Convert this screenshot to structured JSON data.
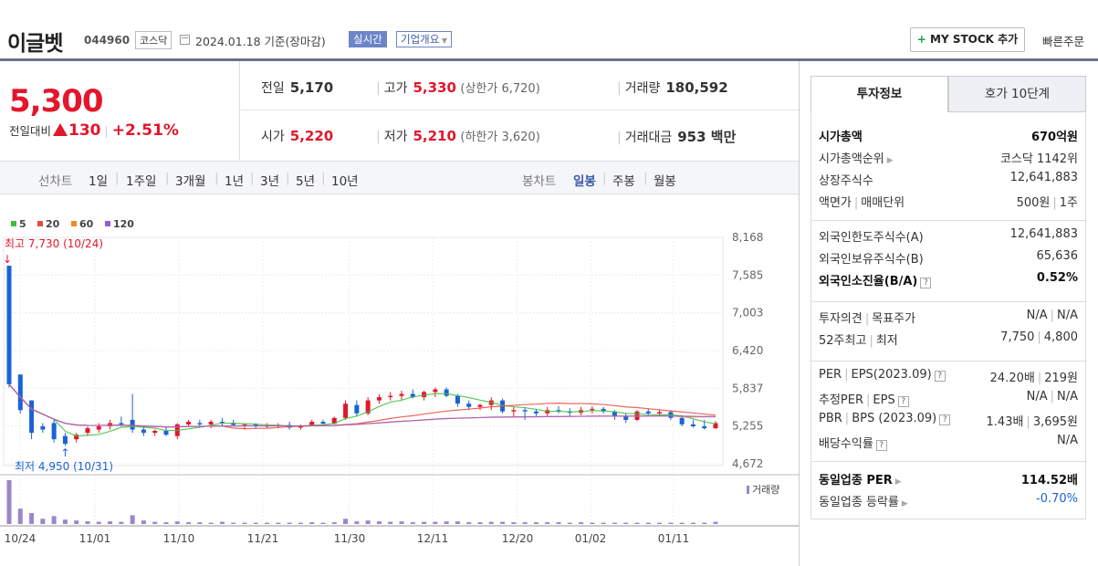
{
  "header": {
    "stock_name": "이글벳",
    "stock_code": "044960",
    "market": "코스닥",
    "date_text": "2024.01.18 기준(장마감)",
    "realtime_label": "실시간",
    "overview_label": "기업개요",
    "mystock_label": "MY STOCK 추가",
    "quick_order_label": "빠른주문"
  },
  "price": {
    "current": "5,300",
    "change_label": "전일대비",
    "change": "130",
    "change_pct": "+2.51%"
  },
  "quote": {
    "prev_label": "전일",
    "prev": "5,170",
    "high_label": "고가",
    "high": "5,330",
    "upper_limit": "(상한가 6,720)",
    "volume_label": "거래량",
    "volume": "180,592",
    "open_label": "시가",
    "open": "5,220",
    "low_label": "저가",
    "low": "5,210",
    "lower_limit": "(하한가 3,620)",
    "amount_label": "거래대금",
    "amount": "953 백만"
  },
  "period_tabs": {
    "line_label": "선차트",
    "line_items": [
      "1일",
      "1주일",
      "3개월",
      "1년",
      "3년",
      "5년",
      "10년"
    ],
    "candle_label": "봉차트",
    "candle_items": [
      "일봉",
      "주봉",
      "월봉"
    ],
    "active": "일봉"
  },
  "chart_data": {
    "type": "candlestick",
    "legend": [
      {
        "name": "5",
        "color": "#3fbf3f"
      },
      {
        "name": "20",
        "color": "#e74c3c"
      },
      {
        "name": "60",
        "color": "#f08a24"
      },
      {
        "name": "120",
        "color": "#9b59d0"
      }
    ],
    "y_ticks": [
      "8,168",
      "7,585",
      "7,003",
      "6,420",
      "5,837",
      "5,255",
      "4,672"
    ],
    "y_range": [
      4672,
      8168
    ],
    "x_ticks": [
      "10/24",
      "11/01",
      "11/10",
      "11/21",
      "11/30",
      "12/11",
      "12/20",
      "01/02",
      "01/11"
    ],
    "high_annotation": "최고 7,730 (10/24)",
    "low_annotation": "최저 4,950 (10/31)",
    "volume_label": "거래량",
    "up_color": "#e3162c",
    "down_color": "#1b62d6",
    "candles": [
      [
        7730,
        7730,
        5850,
        5900
      ],
      [
        6050,
        6050,
        5450,
        5500
      ],
      [
        5650,
        5650,
        5050,
        5150
      ],
      [
        5250,
        5300,
        5150,
        5200
      ],
      [
        5300,
        5350,
        5000,
        5050
      ],
      [
        5100,
        5150,
        4950,
        4980
      ],
      [
        5050,
        5150,
        5000,
        5120
      ],
      [
        5150,
        5250,
        5100,
        5220
      ],
      [
        5200,
        5300,
        5150,
        5250
      ],
      [
        5250,
        5350,
        5200,
        5300
      ],
      [
        5300,
        5400,
        5250,
        5280
      ],
      [
        5350,
        5750,
        5150,
        5200
      ],
      [
        5200,
        5250,
        5100,
        5150
      ],
      [
        5150,
        5200,
        5100,
        5180
      ],
      [
        5180,
        5250,
        5100,
        5120
      ],
      [
        5100,
        5300,
        5050,
        5280
      ],
      [
        5280,
        5350,
        5250,
        5320
      ],
      [
        5300,
        5350,
        5250,
        5280
      ],
      [
        5280,
        5350,
        5220,
        5320
      ],
      [
        5320,
        5380,
        5250,
        5300
      ],
      [
        5300,
        5350,
        5250,
        5270
      ],
      [
        5270,
        5300,
        5200,
        5280
      ],
      [
        5280,
        5300,
        5220,
        5250
      ],
      [
        5250,
        5300,
        5220,
        5260
      ],
      [
        5260,
        5300,
        5220,
        5270
      ],
      [
        5270,
        5320,
        5200,
        5230
      ],
      [
        5230,
        5280,
        5200,
        5260
      ],
      [
        5260,
        5350,
        5250,
        5320
      ],
      [
        5320,
        5350,
        5280,
        5290
      ],
      [
        5290,
        5400,
        5280,
        5380
      ],
      [
        5380,
        5650,
        5350,
        5600
      ],
      [
        5580,
        5650,
        5400,
        5450
      ],
      [
        5450,
        5700,
        5420,
        5650
      ],
      [
        5650,
        5750,
        5600,
        5700
      ],
      [
        5700,
        5780,
        5650,
        5720
      ],
      [
        5720,
        5800,
        5650,
        5750
      ],
      [
        5750,
        5820,
        5680,
        5700
      ],
      [
        5700,
        5800,
        5650,
        5780
      ],
      [
        5780,
        5850,
        5700,
        5820
      ],
      [
        5820,
        5850,
        5700,
        5720
      ],
      [
        5720,
        5750,
        5550,
        5600
      ],
      [
        5600,
        5650,
        5500,
        5550
      ],
      [
        5550,
        5600,
        5500,
        5580
      ],
      [
        5580,
        5700,
        5500,
        5650
      ],
      [
        5650,
        5680,
        5450,
        5480
      ],
      [
        5480,
        5550,
        5400,
        5500
      ],
      [
        5500,
        5550,
        5350,
        5480
      ],
      [
        5480,
        5520,
        5400,
        5450
      ],
      [
        5450,
        5550,
        5400,
        5500
      ],
      [
        5500,
        5560,
        5450,
        5480
      ],
      [
        5480,
        5530,
        5400,
        5460
      ],
      [
        5460,
        5550,
        5420,
        5500
      ],
      [
        5500,
        5560,
        5450,
        5520
      ],
      [
        5520,
        5550,
        5450,
        5480
      ],
      [
        5480,
        5500,
        5350,
        5400
      ],
      [
        5400,
        5450,
        5300,
        5350
      ],
      [
        5350,
        5500,
        5330,
        5480
      ],
      [
        5480,
        5520,
        5420,
        5450
      ],
      [
        5450,
        5500,
        5400,
        5470
      ],
      [
        5470,
        5500,
        5350,
        5380
      ],
      [
        5380,
        5400,
        5250,
        5280
      ],
      [
        5280,
        5350,
        5230,
        5250
      ],
      [
        5250,
        5350,
        5200,
        5220
      ],
      [
        5220,
        5330,
        5210,
        5300
      ]
    ],
    "volumes": [
      100,
      35,
      25,
      12,
      18,
      10,
      8,
      6,
      5,
      6,
      5,
      20,
      8,
      5,
      4,
      6,
      4,
      4,
      3,
      5,
      3,
      3,
      3,
      3,
      3,
      3,
      3,
      4,
      3,
      4,
      12,
      6,
      8,
      6,
      5,
      6,
      4,
      5,
      5,
      6,
      6,
      4,
      4,
      5,
      5,
      4,
      4,
      4,
      4,
      4,
      3,
      4,
      3,
      3,
      3,
      3,
      3,
      3,
      3,
      3,
      3,
      3,
      3,
      5
    ]
  },
  "right_panel": {
    "tabs": [
      "투자정보",
      "호가 10단계"
    ],
    "section1": [
      {
        "k": "시가총액",
        "v": "670억원",
        "bold": true
      },
      {
        "k": "시가총액순위",
        "v": "코스닥 1142위",
        "arrow": true
      },
      {
        "k": "상장주식수",
        "v": "12,641,883"
      },
      {
        "k": "액면가",
        "k2": "매매단위",
        "v": "500원",
        "v2": "1주"
      }
    ],
    "section2": [
      {
        "k": "외국인한도주식수(A)",
        "v": "12,641,883"
      },
      {
        "k": "외국인보유주식수(B)",
        "v": "65,636"
      },
      {
        "k": "외국인소진율(B/A)",
        "v": "0.52%",
        "bold": true,
        "help": true
      }
    ],
    "section3": [
      {
        "k": "투자의견",
        "k2": "목표주가",
        "v": "N/A",
        "v2": "N/A"
      },
      {
        "k": "52주최고",
        "k2": "최저",
        "v": "7,750",
        "v2": "4,800"
      }
    ],
    "section4": [
      {
        "k": "PER",
        "k2": "EPS(2023.09)",
        "v": "24.20배",
        "v2": "219원",
        "help": true
      },
      {
        "k": "추정PER",
        "k2": "EPS",
        "v": "N/A",
        "v2": "N/A",
        "help": true
      },
      {
        "k": "PBR",
        "k2": "BPS (2023.09)",
        "v": "1.43배",
        "v2": "3,695원",
        "help": true
      },
      {
        "k": "배당수익률",
        "v": "N/A",
        "help": true
      }
    ],
    "section5": [
      {
        "k": "동일업종 PER",
        "v": "114.52배",
        "bold": true,
        "arrow": true
      },
      {
        "k": "동일업종 등락률",
        "v": "-0.70%",
        "arrow": true,
        "blue": true
      }
    ],
    "help_glyph": "?"
  }
}
